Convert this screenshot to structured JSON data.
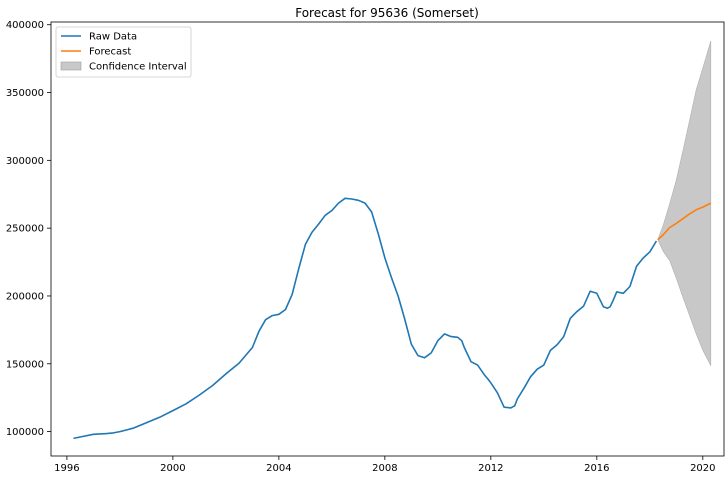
{
  "chart_data": {
    "type": "line",
    "title": "Forecast for 95636 (Somerset)",
    "xlabel": "",
    "ylabel": "",
    "xlim": [
      1995.4,
      2020.8
    ],
    "ylim": [
      82000,
      402000
    ],
    "xticks": [
      1996,
      2000,
      2004,
      2008,
      2012,
      2016,
      2020
    ],
    "yticks": [
      100000,
      150000,
      200000,
      250000,
      300000,
      350000,
      400000
    ],
    "grid": false,
    "legend_position": "top-left",
    "colors": {
      "raw": "#1f77b4",
      "forecast": "#ff7f0e",
      "confidence": "#c8c8c8"
    },
    "legend": [
      {
        "label": "Raw Data",
        "kind": "line",
        "color": "#1f77b4"
      },
      {
        "label": "Forecast",
        "kind": "line",
        "color": "#ff7f0e"
      },
      {
        "label": "Confidence Interval",
        "kind": "patch",
        "color": "#c8c8c8"
      }
    ],
    "series": [
      {
        "name": "Raw Data",
        "x": [
          1996.25,
          1996.5,
          1997.0,
          1997.5,
          1997.75,
          1998.0,
          1998.5,
          1999.0,
          1999.5,
          2000.0,
          2000.5,
          2001.0,
          2001.5,
          2002.0,
          2002.5,
          2003.0,
          2003.25,
          2003.5,
          2003.75,
          2004.0,
          2004.25,
          2004.5,
          2004.75,
          2005.0,
          2005.25,
          2005.5,
          2005.75,
          2006.0,
          2006.25,
          2006.5,
          2006.75,
          2007.0,
          2007.25,
          2007.5,
          2007.75,
          2008.0,
          2008.25,
          2008.5,
          2008.75,
          2009.0,
          2009.25,
          2009.5,
          2009.75,
          2010.0,
          2010.25,
          2010.5,
          2010.75,
          2010.9,
          2011.0,
          2011.25,
          2011.5,
          2011.75,
          2011.9,
          2012.0,
          2012.25,
          2012.5,
          2012.75,
          2012.9,
          2013.0,
          2013.25,
          2013.5,
          2013.75,
          2014.0,
          2014.25,
          2014.5,
          2014.75,
          2015.0,
          2015.25,
          2015.5,
          2015.75,
          2016.0,
          2016.25,
          2016.4,
          2016.5,
          2016.6,
          2016.75,
          2017.0,
          2017.25,
          2017.5,
          2017.75,
          2018.0,
          2018.25
        ],
        "values": [
          95000,
          96000,
          98000,
          98500,
          99000,
          100000,
          102500,
          106500,
          110500,
          115500,
          120500,
          127000,
          134000,
          142500,
          150500,
          162000,
          174000,
          182500,
          185500,
          186500,
          190000,
          201000,
          220000,
          238000,
          247000,
          253000,
          259500,
          263000,
          268500,
          272000,
          271500,
          270500,
          268500,
          262000,
          246000,
          228000,
          213500,
          200000,
          183000,
          164500,
          156000,
          154500,
          158000,
          167000,
          172000,
          170000,
          169500,
          167000,
          162000,
          151500,
          149000,
          142000,
          138500,
          136000,
          128500,
          118000,
          117500,
          119000,
          124000,
          132000,
          140500,
          146000,
          149000,
          160000,
          164000,
          170000,
          183500,
          188500,
          192500,
          203500,
          202000,
          192000,
          191000,
          192000,
          196000,
          203000,
          202000,
          207000,
          222000,
          228000,
          232500,
          240500
        ]
      },
      {
        "name": "Forecast",
        "x": [
          2018.3,
          2018.5,
          2018.75,
          2019.0,
          2019.25,
          2019.5,
          2019.75,
          2020.0,
          2020.3
        ],
        "values": [
          241500,
          245000,
          250500,
          253500,
          257000,
          260500,
          263500,
          265500,
          268500
        ]
      }
    ],
    "confidence_interval": {
      "x": [
        2018.3,
        2018.5,
        2018.75,
        2019.0,
        2019.25,
        2019.5,
        2019.75,
        2020.0,
        2020.3
      ],
      "upper": [
        241500,
        252000,
        268000,
        285500,
        307000,
        329500,
        352000,
        368000,
        388000
      ],
      "lower": [
        241500,
        233000,
        226000,
        213000,
        199000,
        185500,
        172000,
        160000,
        148500
      ]
    }
  }
}
